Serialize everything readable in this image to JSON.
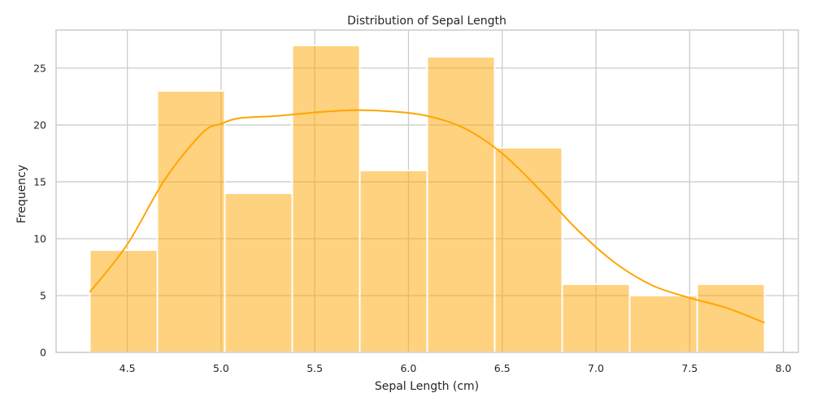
{
  "chart_data": {
    "type": "bar",
    "title": "Distribution of Sepal Length",
    "xlabel": "Sepal Length (cm)",
    "ylabel": "Frequency",
    "bin_edges": [
      4.3,
      4.66,
      5.02,
      5.38,
      5.74,
      6.1,
      6.46,
      6.82,
      7.18,
      7.54,
      7.9
    ],
    "values": [
      9,
      23,
      14,
      27,
      16,
      26,
      18,
      6,
      5,
      6
    ],
    "kde": {
      "x": [
        4.3,
        4.5,
        4.7,
        4.9,
        5.0,
        5.1,
        5.3,
        5.5,
        5.7,
        5.9,
        6.1,
        6.3,
        6.5,
        6.7,
        6.9,
        7.1,
        7.3,
        7.5,
        7.7,
        7.9
      ],
      "y": [
        5.3,
        9.5,
        15.2,
        19.3,
        20.1,
        20.6,
        20.8,
        21.1,
        21.3,
        21.2,
        20.8,
        19.7,
        17.5,
        14.3,
        10.8,
        7.9,
        5.9,
        4.8,
        3.9,
        2.6
      ]
    },
    "xlim": [
      4.12,
      8.08
    ],
    "ylim": [
      0,
      28.35
    ],
    "xticks": [
      "4.5",
      "5.0",
      "5.5",
      "6.0",
      "6.5",
      "7.0",
      "7.5",
      "8.0"
    ],
    "yticks": [
      "0",
      "5",
      "10",
      "15",
      "20",
      "25"
    ],
    "grid": true,
    "colors": {
      "bar_fill": "#ffa500",
      "bar_opacity": 0.5,
      "kde_line": "#ffa500",
      "grid": "#cccccc",
      "spine": "#cccccc"
    }
  }
}
